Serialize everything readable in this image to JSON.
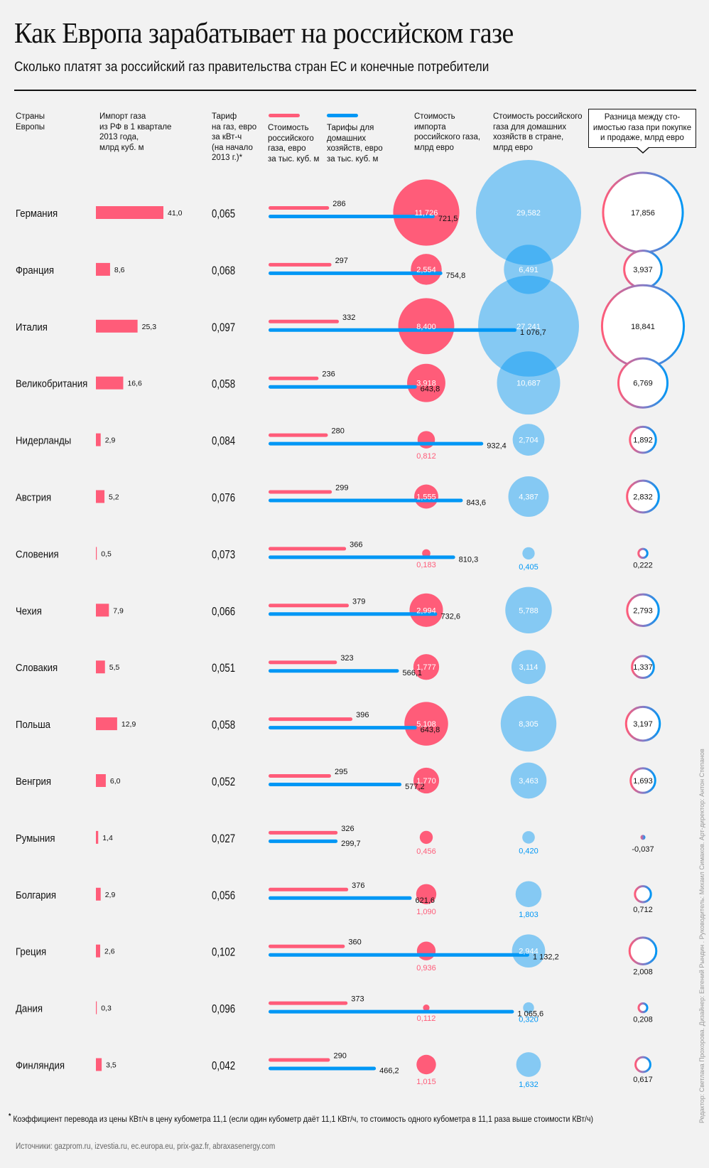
{
  "header": {
    "title": "Как Европа зарабатывает на российском газе",
    "subtitle": "Сколько платят за российский газ правительства стран ЕС и конечные потребители"
  },
  "columns": {
    "country": "Страны\nЕвропы",
    "import": "Импорт газа\nиз РФ в 1 квартале\n2013 года,\nмлрд куб. м",
    "tariff": "Тариф\nна газ, евро\nза кВт-ч\n(на начало\n2013 г.)*",
    "gas_cost": "Стоимость\nроссийского\nгаза, евро\nза тыс. куб. м",
    "household_tariff": "Тарифы для\nдомашних\nхозяйств, евро\nза тыс. куб. м",
    "import_value": "Стоимость\nимпорта\nроссийского газа,\nмлрд евро",
    "household_value": "Стоимость российского\nгаза для домашних\nхозяйств в стране,\nмлрд евро",
    "difference": "Разница между сто-\nимостью газа при покупке\nи продаже, млрд евро"
  },
  "colors": {
    "red": "#ff5c79",
    "blue": "#0097f5",
    "light_blue": "#88c7f5",
    "background": "#f2f2f2"
  },
  "chart_data": {
    "type": "table",
    "title": "Как Европа зарабатывает на российском газе",
    "countries": [
      "Германия",
      "Франция",
      "Италия",
      "Великобритания",
      "Нидерланды",
      "Австрия",
      "Словения",
      "Чехия",
      "Словакия",
      "Польша",
      "Венгрия",
      "Румыния",
      "Болгария",
      "Греция",
      "Дания",
      "Финляндия"
    ],
    "import_bcm": [
      "41,0",
      "8,6",
      "25,3",
      "16,6",
      "2,9",
      "5,2",
      "0,5",
      "7,9",
      "5,5",
      "12,9",
      "6,0",
      "1,4",
      "2,9",
      "2,6",
      "0,3",
      "3,5"
    ],
    "tariff_eur_kwh": [
      "0,065",
      "0,068",
      "0,097",
      "0,058",
      "0,084",
      "0,076",
      "0,073",
      "0,066",
      "0,051",
      "0,058",
      "0,052",
      "0,027",
      "0,056",
      "0,102",
      "0,096",
      "0,042"
    ],
    "gas_cost_eur_tcm": [
      "286",
      "297",
      "332",
      "236",
      "280",
      "299",
      "366",
      "379",
      "323",
      "396",
      "295",
      "326",
      "376",
      "360",
      "373",
      "290"
    ],
    "household_tariff_eur_tcm": [
      "721,5",
      "754,8",
      "1 076,7",
      "643,8",
      "932,4",
      "843,6",
      "810,3",
      "732,6",
      "566,1",
      "643,8",
      "577,2",
      "299,7",
      "621,6",
      "1 132,2",
      "1 065,6",
      "466,2"
    ],
    "import_value_bn_eur": [
      "11,726",
      "2,554",
      "8,400",
      "3,918",
      "0,812",
      "1,555",
      "0,183",
      "2,994",
      "1,777",
      "5,108",
      "1,770",
      "0,456",
      "1,090",
      "0,936",
      "0,112",
      "1,015"
    ],
    "household_value_bn_eur": [
      "29,582",
      "6,491",
      "27,241",
      "10,687",
      "2,704",
      "4,387",
      "0,405",
      "5,788",
      "3,114",
      "8,305",
      "3,463",
      "0,420",
      "1,803",
      "2,944",
      "0,320",
      "1,632"
    ],
    "difference_bn_eur": [
      "17,856",
      "3,937",
      "18,841",
      "6,769",
      "1,892",
      "2,832",
      "0,222",
      "2,793",
      "1,337",
      "3,197",
      "1,693",
      "-0,037",
      "0,712",
      "2,008",
      "0,208",
      "0,617"
    ],
    "label_outside_import": [
      false,
      false,
      false,
      false,
      true,
      false,
      true,
      false,
      false,
      false,
      false,
      true,
      true,
      true,
      true,
      true
    ],
    "label_outside_household": [
      false,
      false,
      false,
      false,
      false,
      false,
      true,
      false,
      false,
      false,
      false,
      true,
      true,
      false,
      true,
      true
    ],
    "label_outside_difference": [
      false,
      false,
      false,
      false,
      false,
      false,
      true,
      false,
      false,
      false,
      false,
      true,
      true,
      true,
      true,
      true
    ]
  },
  "footnote": "Коэффициент перевода из цены КВт/ч в цену кубометра 11,1 (если один кубометр даёт 11,1 КВт/ч, то стоимость одного кубометра в 11,1 раза выше стоимости КВт/ч)",
  "footnote_mark": "*",
  "sources": "Источники: gazprom.ru, izvestia.ru, ec.europa.eu, prix-gaz.fr, abraxasenergy.com",
  "credits": "Редактор: Светлана Прохорова. Дизайнер: Евгений Рындин . Руководитель: Михаил Симаков. Арт-директор: Антон Степанов"
}
